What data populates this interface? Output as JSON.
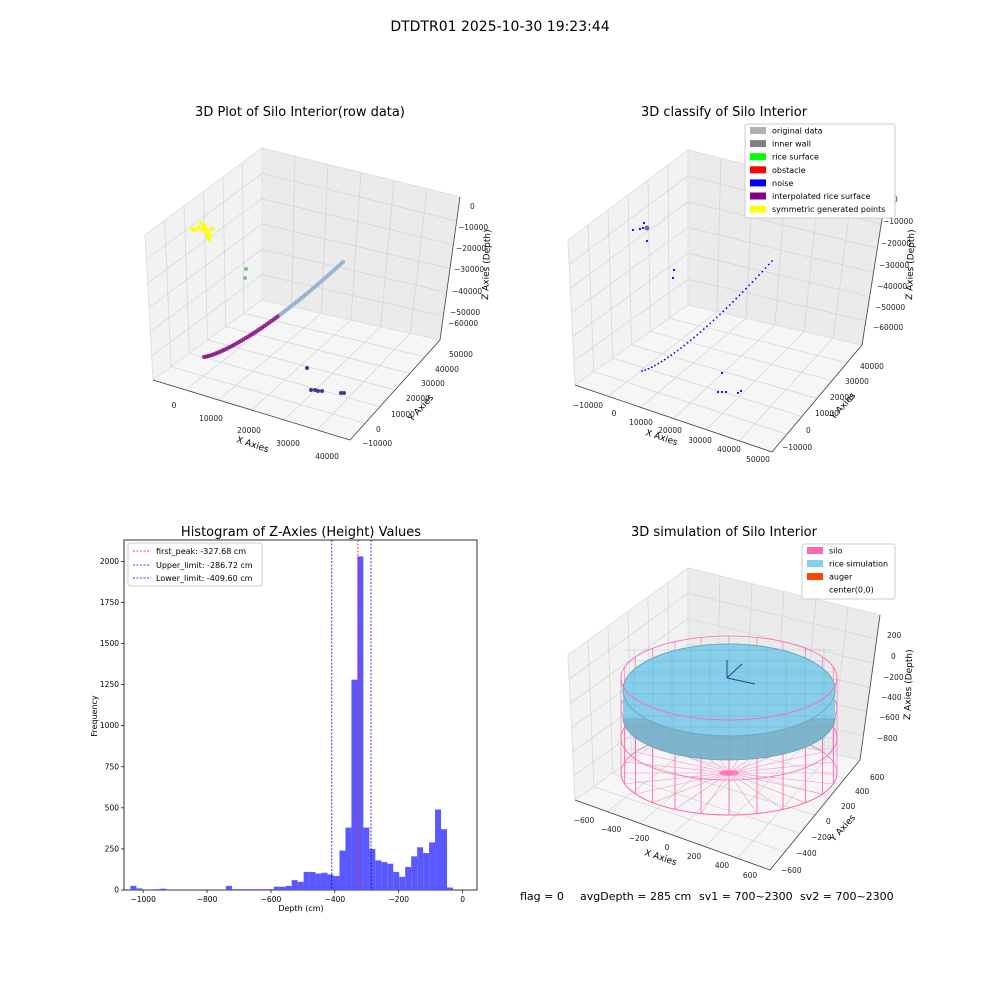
{
  "figure": {
    "suptitle": "DTDTR01 2025-10-30 19:23:44",
    "footer": {
      "flag": "flag = 0",
      "avg_depth": "avgDepth = 285 cm",
      "sv1": "sv1 = 700~2300",
      "sv2": "sv2 = 700~2300"
    }
  },
  "colors": {
    "original": "#b0b0b0",
    "inner_wall": "#808080",
    "rice_surface": "#00ff00",
    "obstacle": "#ff0000",
    "noise": "#0000ff",
    "interpolated": "#800080",
    "symmetric": "#ffff00",
    "silo": "#ff69b4",
    "rice_sim": "#87ceeb",
    "auger": "#ff4500",
    "hist_bar": "#5050ff",
    "peak_line": "#ff0000",
    "limit_line": "#0000ff"
  },
  "chart_data": [
    {
      "type": "scatter",
      "title": "3D Plot of Silo Interior(row data)",
      "xlabel": "X Axies",
      "ylabel": "Y Axies",
      "zlabel": "Z Axies (Depth)",
      "x_ticks": [
        "0",
        "10000",
        "20000",
        "30000",
        "40000"
      ],
      "y_ticks": [
        "−10000",
        "0",
        "10000",
        "20000",
        "30000",
        "40000",
        "50000"
      ],
      "z_ticks": [
        "0",
        "−10000",
        "−20000",
        "−30000",
        "−40000",
        "−50000",
        "−60000"
      ]
    },
    {
      "type": "scatter",
      "title": "3D classify of Silo Interior",
      "xlabel": "X Axies",
      "ylabel": "Y Axies",
      "zlabel": "Z Axies (Depth)",
      "x_ticks": [
        "−10000",
        "0",
        "10000",
        "20000",
        "30000",
        "40000",
        "50000"
      ],
      "y_ticks": [
        "−10000",
        "0",
        "10000",
        "20000",
        "30000",
        "40000"
      ],
      "z_ticks": [
        "0",
        "−10000",
        "−20000",
        "−30000",
        "−40000",
        "−50000",
        "−60000"
      ],
      "legend": [
        "original data",
        "inner wall",
        "rice surface",
        "obstacle",
        "noise",
        "interpolated rice surface",
        "symmetric generated points"
      ]
    },
    {
      "type": "bar",
      "title": "Histogram of Z-Axies (Height) Values",
      "xlabel": "Depth (cm)",
      "ylabel": "Frequency",
      "xlim": [
        -1060,
        45
      ],
      "ylim": [
        0,
        2130
      ],
      "x_ticks": [
        "−1000",
        "−800",
        "−600",
        "−400",
        "−200",
        "0"
      ],
      "y_ticks": [
        "0",
        "250",
        "500",
        "750",
        "1000",
        "1250",
        "1500",
        "1750",
        "2000"
      ],
      "bin_start": -1040,
      "bin_width": 18.7,
      "values": [
        25,
        10,
        0,
        0,
        5,
        8,
        0,
        0,
        0,
        0,
        0,
        0,
        0,
        0,
        0,
        0,
        25,
        5,
        5,
        5,
        5,
        5,
        5,
        5,
        20,
        20,
        25,
        60,
        50,
        110,
        110,
        100,
        105,
        95,
        85,
        240,
        380,
        1280,
        2030,
        380,
        250,
        180,
        170,
        160,
        110,
        80,
        140,
        205,
        260,
        225,
        290,
        490,
        370,
        15
      ],
      "lines": [
        {
          "label": "first_peak: -327.68 cm",
          "x": -327.68,
          "style": "peak"
        },
        {
          "label": "Upper_limit: -286.72 cm",
          "x": -286.72,
          "style": "limit"
        },
        {
          "label": "Lower_limit: -409.60 cm",
          "x": -409.6,
          "style": "limit"
        }
      ]
    },
    {
      "type": "scatter",
      "title": "3D simulation of Silo Interior",
      "xlabel": "X Axies",
      "ylabel": "Y Axies",
      "zlabel": "Z Axies (Depth)",
      "x_ticks": [
        "−600",
        "−400",
        "−200",
        "0",
        "200",
        "400",
        "600"
      ],
      "y_ticks": [
        "−600",
        "−400",
        "−200",
        "0",
        "200",
        "400",
        "600"
      ],
      "z_ticks": [
        "200",
        "0",
        "−200",
        "−400",
        "−600",
        "−800"
      ],
      "legend": [
        "silo",
        "rice simulation",
        "auger",
        "center(0,0)"
      ]
    }
  ]
}
